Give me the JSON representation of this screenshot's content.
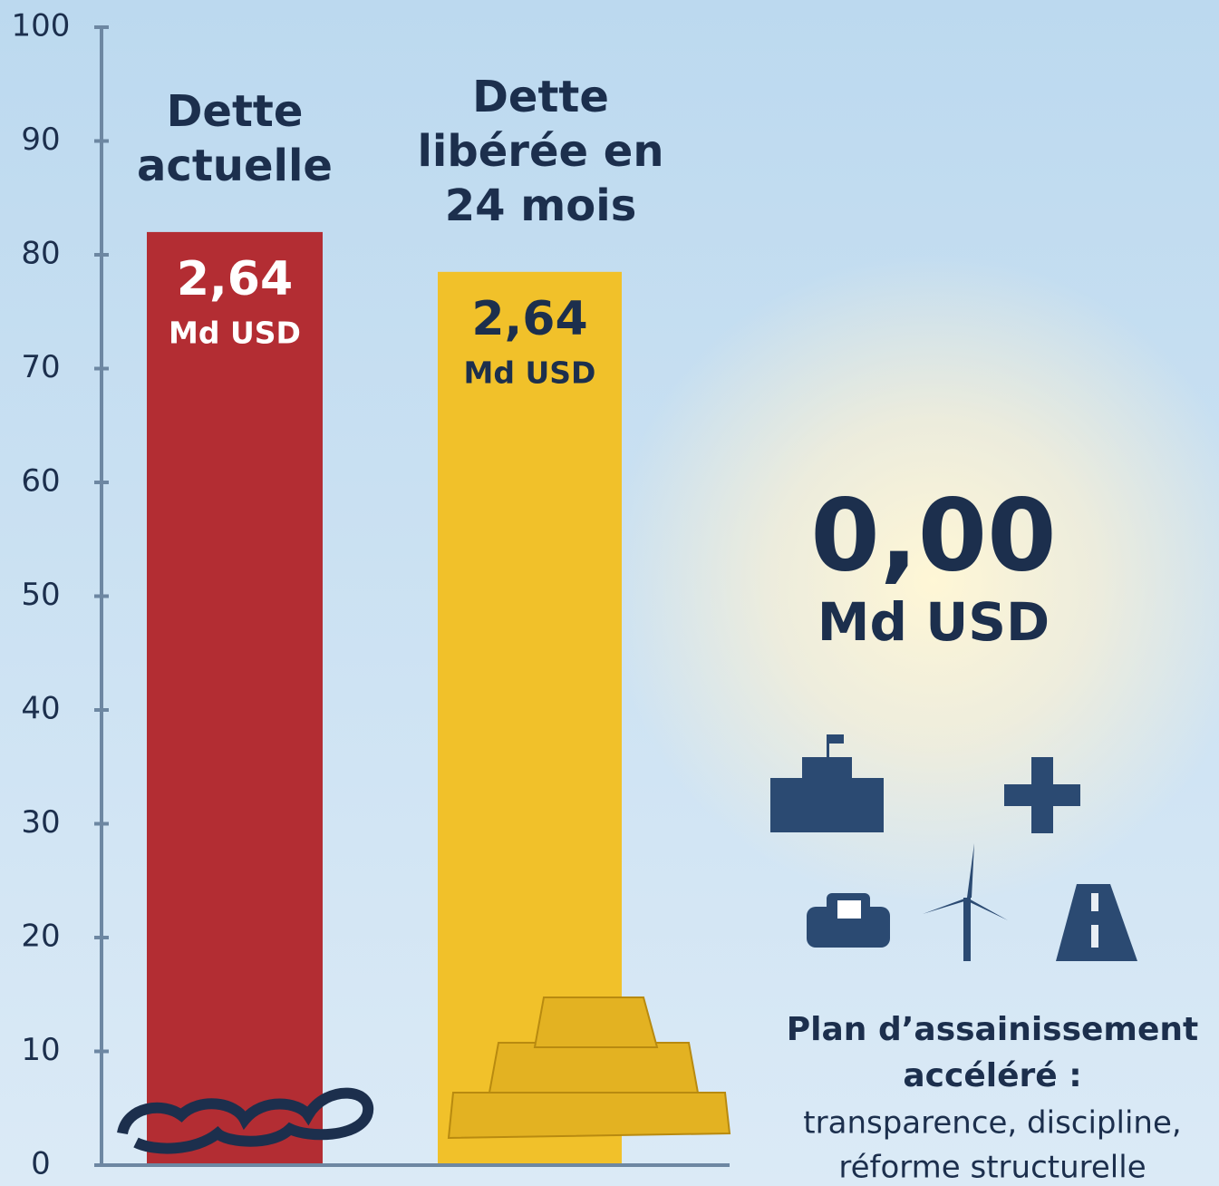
{
  "chart_data": {
    "type": "bar",
    "categories": [
      [
        "Dette",
        "actuelle"
      ],
      [
        "Dette",
        "libérée en",
        "24 mois"
      ]
    ],
    "values": [
      82,
      78.5
    ],
    "colors": [
      "#b32d33",
      "#f1c12a"
    ],
    "bar_labels": [
      {
        "amount": "2,64",
        "unit": "Md USD"
      },
      {
        "amount": "2,64",
        "unit": "Md USD"
      }
    ],
    "ylim": [
      0,
      100
    ],
    "yticks": [
      0,
      10,
      20,
      30,
      40,
      50,
      60,
      70,
      80,
      90,
      100
    ],
    "grid": false,
    "highlight": {
      "amount": "0,00",
      "unit": "Md USD"
    },
    "plan": {
      "title": [
        "Plan d’assainissement",
        "accéléré :"
      ],
      "text": [
        "transparence, discipline,",
        "réforme structurelle"
      ]
    }
  }
}
